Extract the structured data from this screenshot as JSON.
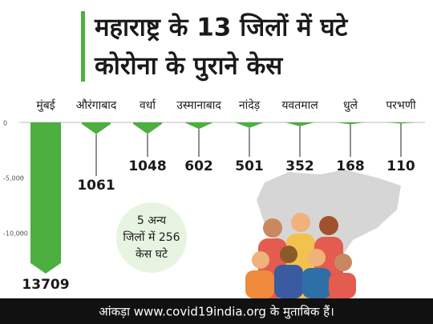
{
  "chart_data": {
    "type": "bar",
    "title_lines": [
      "महाराष्ट्र के 13 जिलों में घटे",
      "कोरोना के पुराने केस"
    ],
    "categories": [
      "मुंबई",
      "औरंगाबाद",
      "वर्धा",
      "उस्मानाबाद",
      "नांदेड़",
      "यवतमाल",
      "धुले",
      "परभणी"
    ],
    "values": [
      -13709,
      -1061,
      -1048,
      -602,
      -501,
      -352,
      -168,
      -110
    ],
    "value_labels": [
      "13709",
      "1061",
      "1048",
      "602",
      "501",
      "352",
      "168",
      "110"
    ],
    "color": "#4caf3f",
    "ylim": [
      -14000,
      0
    ],
    "yticks": [
      {
        "value": 0,
        "label": "0"
      },
      {
        "value": -5000,
        "label": "-5,000"
      },
      {
        "value": -10000,
        "label": "-10,000"
      }
    ],
    "annotation_lines": [
      "5 अन्य",
      "जिलों में 256",
      "केस घटे"
    ],
    "footer": "आंकड़ा www.covid19india.org के मुताबिक हैं।"
  }
}
